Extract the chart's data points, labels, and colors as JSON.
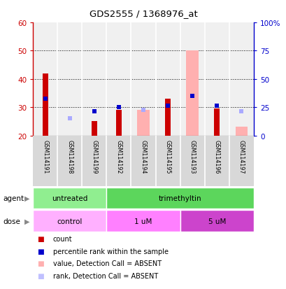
{
  "title": "GDS2555 / 1368976_at",
  "samples": [
    "GSM114191",
    "GSM114198",
    "GSM114199",
    "GSM114192",
    "GSM114194",
    "GSM114195",
    "GSM114193",
    "GSM114196",
    "GSM114197"
  ],
  "ylim_left": [
    20,
    60
  ],
  "ylim_right": [
    0,
    100
  ],
  "yticks_left": [
    20,
    30,
    40,
    50,
    60
  ],
  "yticks_right": [
    0,
    25,
    50,
    75,
    100
  ],
  "ytick_labels_right": [
    "0",
    "25",
    "50",
    "75",
    "100%"
  ],
  "bar_bottom": 20,
  "red_bars": [
    42,
    null,
    25,
    29,
    null,
    33,
    null,
    29.5,
    null
  ],
  "pink_bars": [
    null,
    null,
    null,
    null,
    29,
    null,
    50,
    null,
    23
  ],
  "blue_squares_val": [
    33,
    null,
    28.5,
    30,
    null,
    30.5,
    34,
    30.5,
    null
  ],
  "lavender_squares_val": [
    null,
    26,
    null,
    null,
    29,
    null,
    null,
    null,
    28.5
  ],
  "agent_groups": [
    {
      "label": "untreated",
      "start": 0,
      "end": 3,
      "color": "#90EE90"
    },
    {
      "label": "trimethyltin",
      "start": 3,
      "end": 9,
      "color": "#5CD65C"
    }
  ],
  "dose_groups": [
    {
      "label": "control",
      "start": 0,
      "end": 3,
      "color": "#FFB0FF"
    },
    {
      "label": "1 uM",
      "start": 3,
      "end": 6,
      "color": "#FF80FF"
    },
    {
      "label": "5 uM",
      "start": 6,
      "end": 9,
      "color": "#CC44CC"
    }
  ],
  "legend_items": [
    {
      "color": "#CC0000",
      "label": "count"
    },
    {
      "color": "#0000CC",
      "label": "percentile rank within the sample"
    },
    {
      "color": "#FFB0B0",
      "label": "value, Detection Call = ABSENT"
    },
    {
      "color": "#C0C0FF",
      "label": "rank, Detection Call = ABSENT"
    }
  ],
  "red_bar_width": 0.22,
  "pink_bar_width": 0.5,
  "axes_bg": "#F0F0F0",
  "left_color": "#CC0000",
  "right_color": "#0000CC",
  "grid_lines": [
    30,
    40,
    50
  ]
}
